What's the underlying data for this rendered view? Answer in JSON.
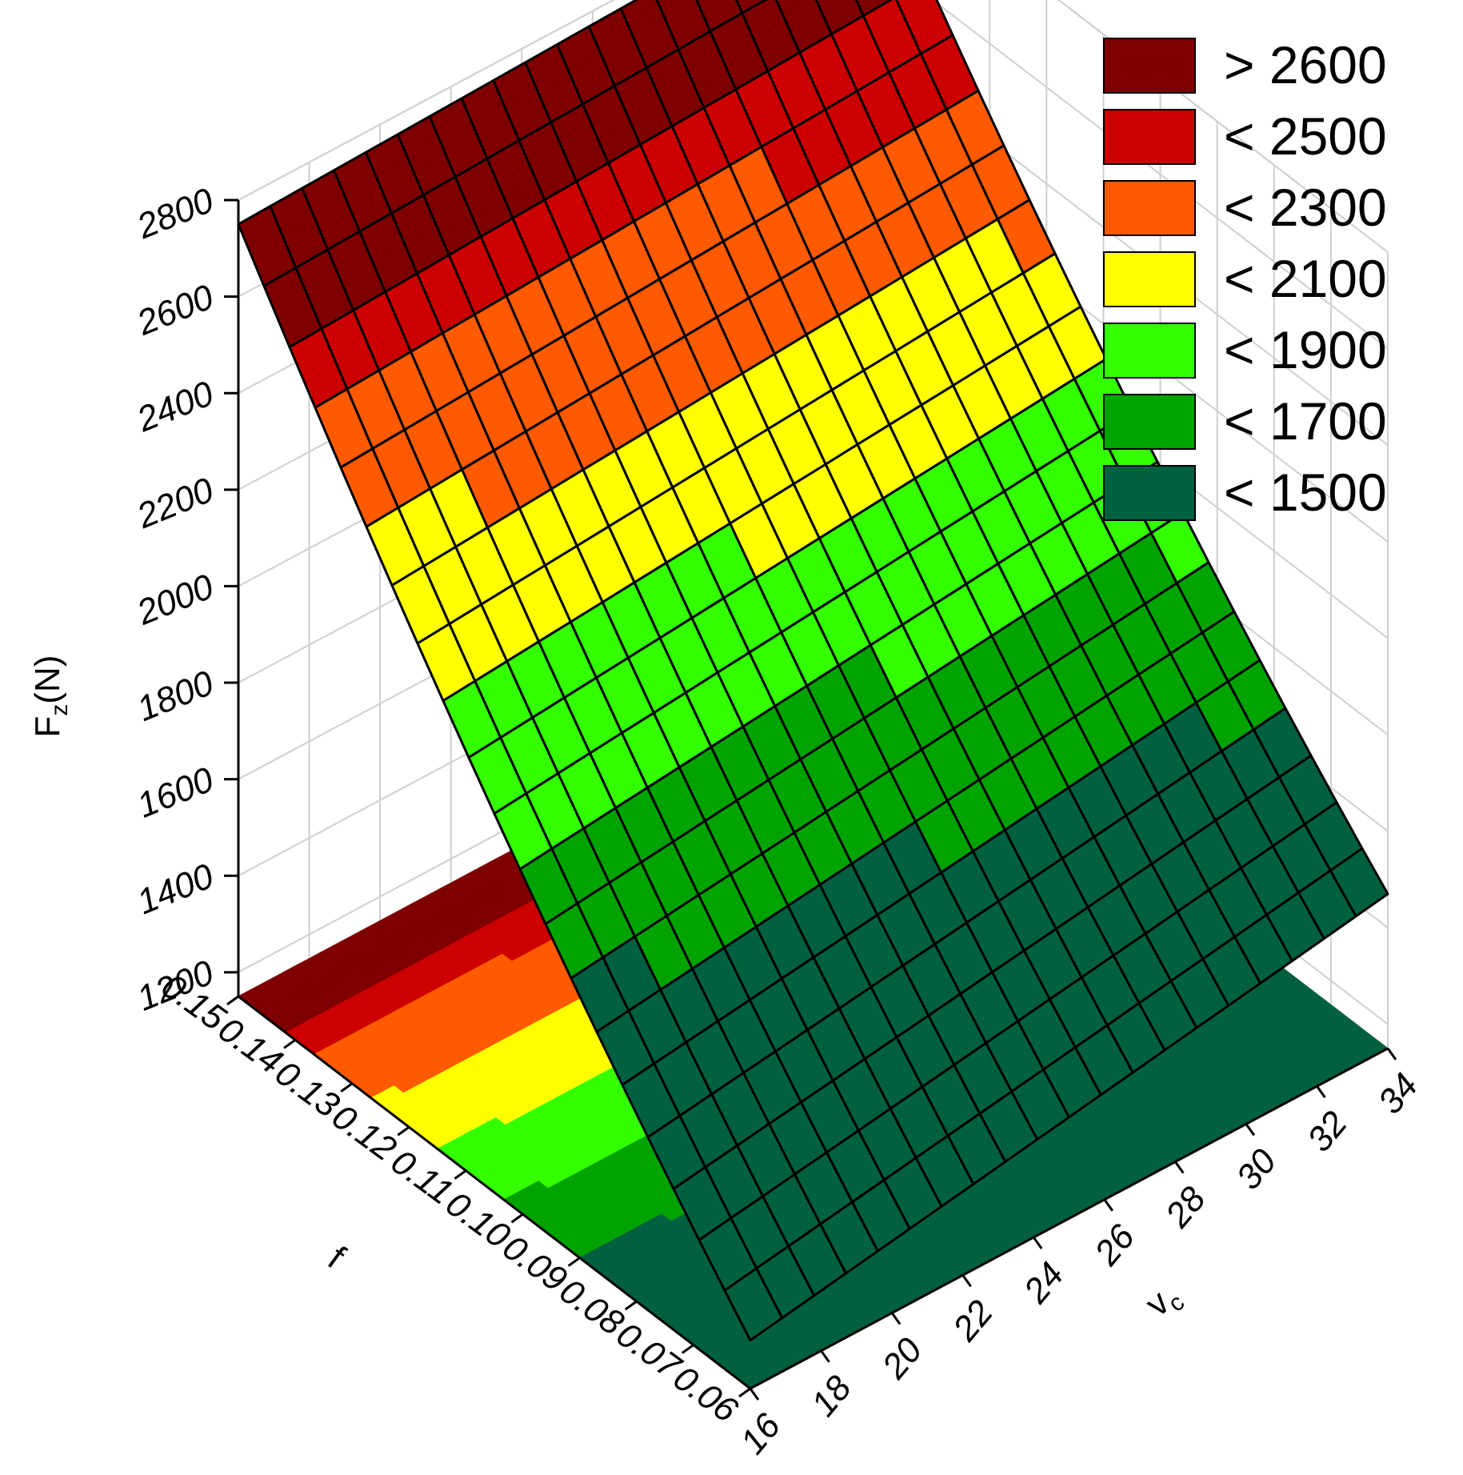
{
  "chart_data": {
    "type": "surface",
    "z_label": "F",
    "z_label_sub": "z",
    "z_label_unit": "(N)",
    "x_label": "f",
    "y_label": "v",
    "y_label_sub": "c",
    "x_ticks": [
      "0.15",
      "0.14",
      "0.13",
      "0.12",
      "0.11",
      "0.10",
      "0.09",
      "0.08",
      "0.07",
      "0.06"
    ],
    "y_ticks": [
      "16",
      "18",
      "20",
      "22",
      "24",
      "26",
      "28",
      "30",
      "32",
      "34"
    ],
    "z_ticks": [
      "1200",
      "1400",
      "1600",
      "1800",
      "2000",
      "2200",
      "2400",
      "2600",
      "2800"
    ],
    "x_range": [
      0.06,
      0.15
    ],
    "y_range": [
      16,
      34
    ],
    "z_range": [
      1150,
      2800
    ],
    "surface_corners": {
      "f0.15_vc16": 2750,
      "f0.15_vc34": 2790,
      "f0.06_vc16": 1250,
      "f0.06_vc34": 1470
    },
    "legend": [
      {
        "label": "> 2600",
        "color": "#7f0000"
      },
      {
        "label": "< 2500",
        "color": "#cc0000"
      },
      {
        "label": "< 2300",
        "color": "#ff5a00"
      },
      {
        "label": "< 2100",
        "color": "#ffff00"
      },
      {
        "label": "< 1900",
        "color": "#33ff00"
      },
      {
        "label": "< 1700",
        "color": "#00a300"
      },
      {
        "label": "< 1500",
        "color": "#006040"
      }
    ],
    "contour_projection": true,
    "grid": true
  }
}
